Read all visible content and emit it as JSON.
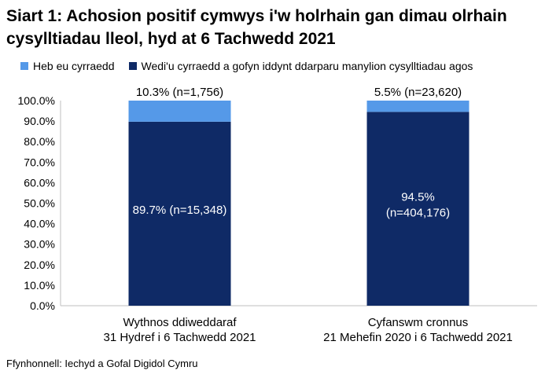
{
  "title": "Siart 1: Achosion positif cymwys i'w holrhain gan dimau olrhain cysylltiadau lleol, hyd at 6 Tachwedd 2021",
  "source": "Ffynhonnell: Iechyd a Gofal Digidol Cymru",
  "colors": {
    "not_reached": "#5599e8",
    "reached": "#0f2a66"
  },
  "chart_data": {
    "type": "bar",
    "stacked": true,
    "title": "Siart 1: Achosion positif cymwys i'w holrhain gan dimau olrhain cysylltiadau lleol, hyd at 6 Tachwedd 2021",
    "categories": [
      [
        "Wythnos ddiweddaraf",
        "31 Hydref i 6 Tachwedd 2021"
      ],
      [
        "Cyfanswm cronnus",
        "21 Mehefin 2020 i 6 Tachwedd 2021"
      ]
    ],
    "series": [
      {
        "name": "Wedi'u cyrraedd a gofyn iddynt ddarparu manylion cysylltiadau agos",
        "values": [
          89.7,
          94.5
        ],
        "labels": [
          [
            "89.7% (n=15,348)"
          ],
          [
            "94.5%",
            "(n=404,176)"
          ]
        ]
      },
      {
        "name": "Heb eu cyrraedd",
        "values": [
          10.3,
          5.5
        ],
        "labels": [
          [
            "10.3% (n=1,756)"
          ],
          [
            "5.5% (n=23,620)"
          ]
        ]
      }
    ],
    "legend_order": [
      "Heb eu cyrraedd",
      "Wedi'u cyrraedd a gofyn iddynt ddarparu manylion cysylltiadau agos"
    ],
    "ylim": [
      0,
      100
    ],
    "yticks": [
      "0.0%",
      "10.0%",
      "20.0%",
      "30.0%",
      "40.0%",
      "50.0%",
      "60.0%",
      "70.0%",
      "80.0%",
      "90.0%",
      "100.0%"
    ],
    "grid": false,
    "legend_position": "top"
  }
}
